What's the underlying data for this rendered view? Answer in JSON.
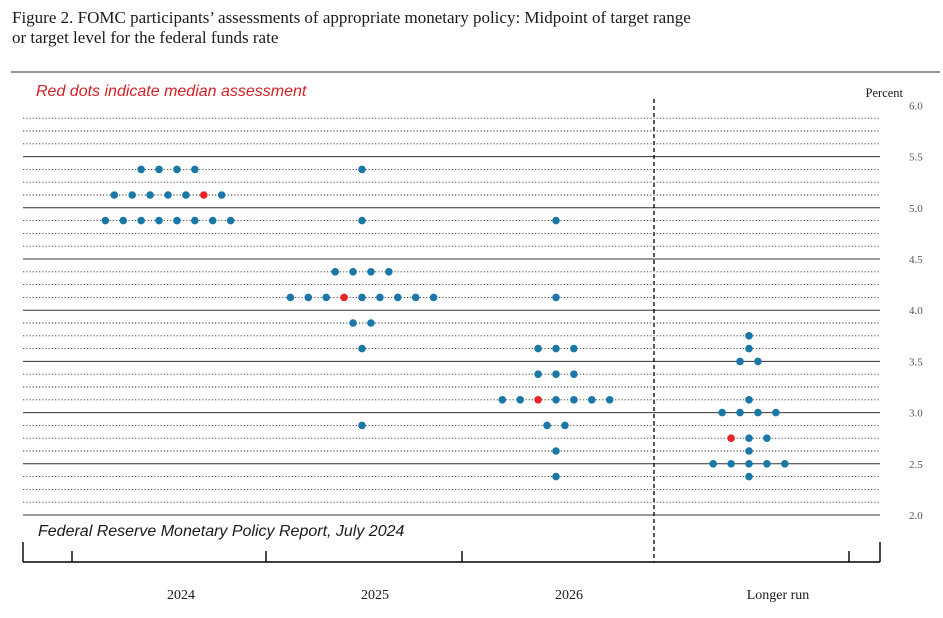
{
  "title": {
    "line1": "Figure 2. FOMC participants’ assessments of appropriate monetary policy:  Midpoint of target range",
    "line2": "or target level for the federal funds rate"
  },
  "notes": {
    "median_note": "Red dots indicate median assessment",
    "source": "Federal Reserve Monetary Policy Report, July 2024"
  },
  "colors": {
    "dot": "#1a78a8",
    "median": "#e8232a",
    "note_red": "#d42027",
    "grid": "#333333"
  },
  "chart_data": {
    "type": "scatter",
    "subtype": "dot-plot",
    "ylabel": "Percent",
    "ylim": [
      2.0,
      6.0
    ],
    "yticks": [
      "2.0",
      "2.5",
      "3.0",
      "3.5",
      "4.0",
      "4.5",
      "5.0",
      "5.5",
      "6.0"
    ],
    "grid": "dotted every 0.125, solid every 0.5",
    "categories": [
      "2024",
      "2025",
      "2026",
      "Longer run"
    ],
    "series": [
      {
        "category": "2024",
        "rates": [
          {
            "rate": 5.375,
            "count": 4
          },
          {
            "rate": 5.125,
            "count": 7,
            "median_index": 5
          },
          {
            "rate": 4.875,
            "count": 8
          }
        ]
      },
      {
        "category": "2025",
        "rates": [
          {
            "rate": 5.375,
            "count": 1
          },
          {
            "rate": 4.875,
            "count": 1
          },
          {
            "rate": 4.375,
            "count": 4
          },
          {
            "rate": 4.125,
            "count": 9,
            "median_index": 3
          },
          {
            "rate": 3.875,
            "count": 2
          },
          {
            "rate": 3.625,
            "count": 1
          },
          {
            "rate": 2.875,
            "count": 1
          }
        ]
      },
      {
        "category": "2026",
        "rates": [
          {
            "rate": 4.875,
            "count": 1
          },
          {
            "rate": 4.125,
            "count": 1
          },
          {
            "rate": 3.625,
            "count": 3
          },
          {
            "rate": 3.375,
            "count": 3
          },
          {
            "rate": 3.125,
            "count": 7,
            "median_index": 2
          },
          {
            "rate": 2.875,
            "count": 2
          },
          {
            "rate": 2.625,
            "count": 1
          },
          {
            "rate": 2.375,
            "count": 1
          }
        ]
      },
      {
        "category": "Longer run",
        "rates": [
          {
            "rate": 3.75,
            "count": 1
          },
          {
            "rate": 3.625,
            "count": 1
          },
          {
            "rate": 3.5,
            "count": 2
          },
          {
            "rate": 3.125,
            "count": 1
          },
          {
            "rate": 3.0,
            "count": 4
          },
          {
            "rate": 2.75,
            "count": 3,
            "median_index": 0
          },
          {
            "rate": 2.625,
            "count": 1
          },
          {
            "rate": 2.5,
            "count": 5
          },
          {
            "rate": 2.375,
            "count": 1
          }
        ]
      }
    ]
  }
}
